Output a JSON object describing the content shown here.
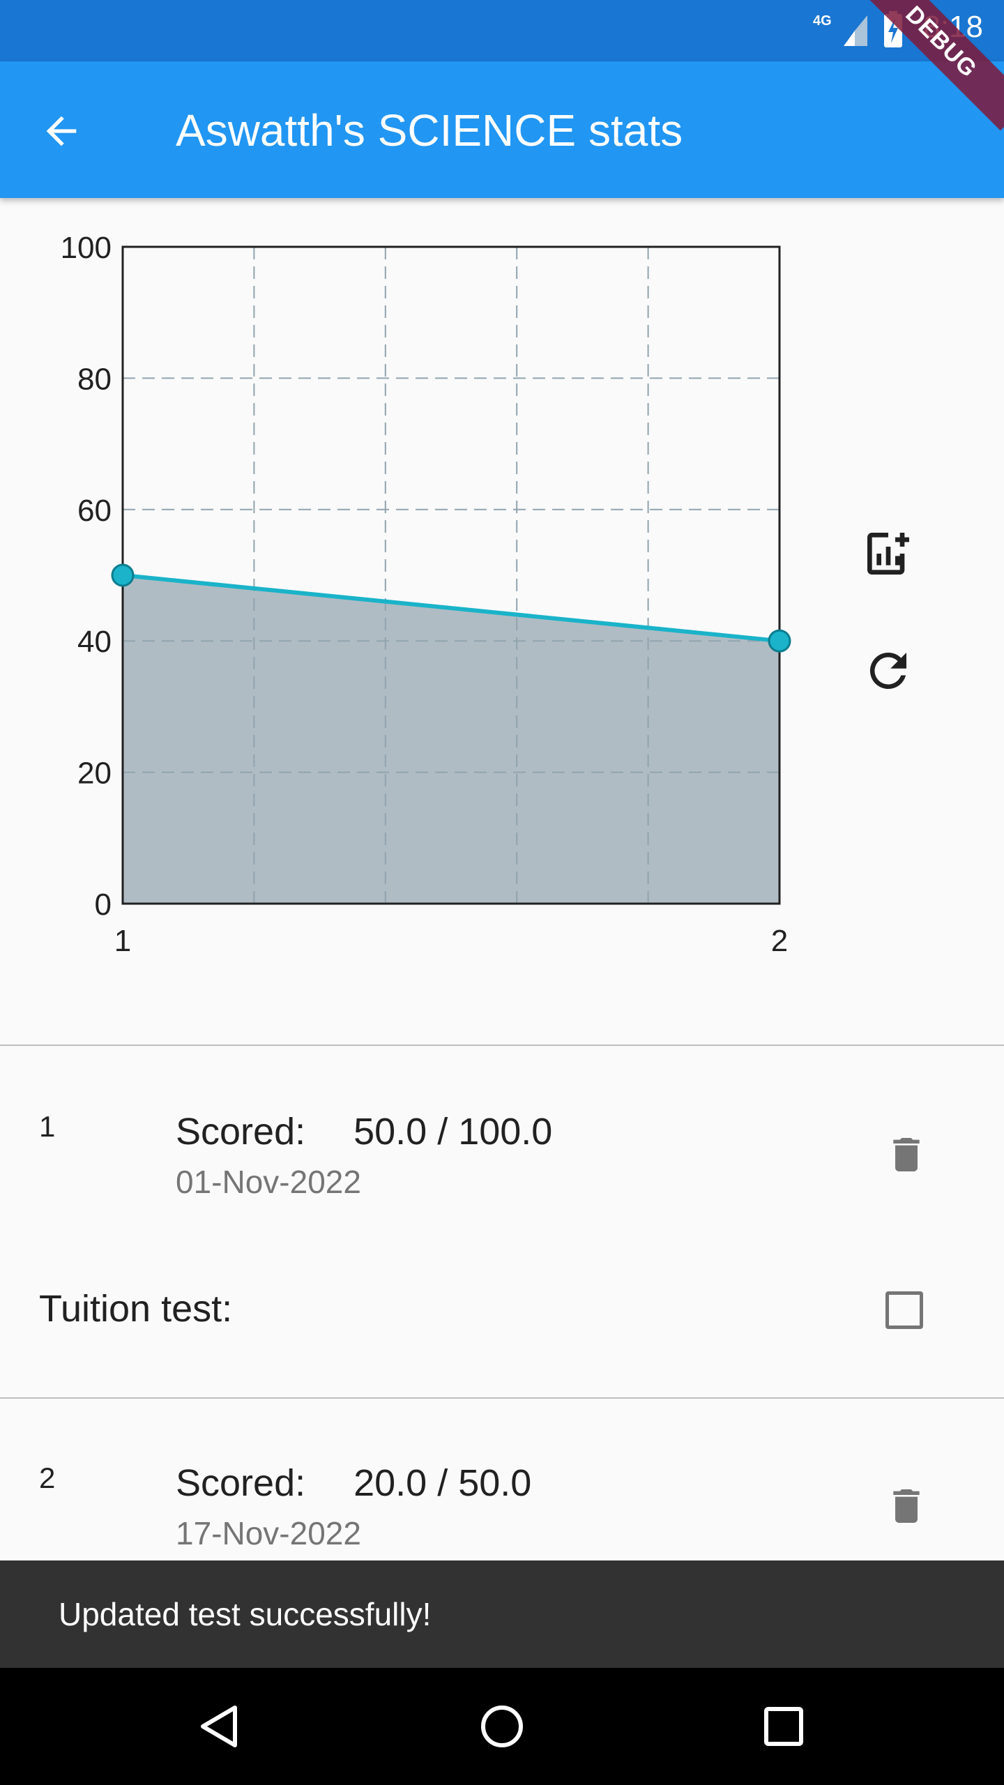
{
  "status_bar": {
    "time": "8:18",
    "network": "4G",
    "debug_banner": "DEBUG",
    "color": "#1976d2"
  },
  "app_bar": {
    "title": "Aswatth's SCIENCE stats",
    "back_icon": "arrow-back-icon",
    "color": "#2196f3"
  },
  "chart_data": {
    "type": "line",
    "x": [
      1,
      2
    ],
    "series": [
      {
        "values": [
          50,
          40
        ]
      }
    ],
    "xlim": [
      1,
      2
    ],
    "ylim": [
      0,
      100
    ],
    "x_ticks": [
      "1",
      "2"
    ],
    "y_ticks": [
      "0",
      "20",
      "40",
      "60",
      "80",
      "100"
    ],
    "grid": true,
    "area_fill": true,
    "line_color": "#1ab3c9",
    "fill_color": "#b0bcc4"
  },
  "chart_actions": {
    "add_icon": "add-chart-icon",
    "refresh_icon": "refresh-icon"
  },
  "tests": [
    {
      "index": "1",
      "score": "Scored:  50.0 / 100.0",
      "date": "01-Nov-2022",
      "delete_icon": "trash-icon"
    },
    {
      "index": "2",
      "score": "Scored:  20.0 / 50.0",
      "date": "17-Nov-2022",
      "delete_icon": "trash-icon"
    }
  ],
  "tuition": {
    "label": "Tuition test:",
    "checked": false
  },
  "snackbar": {
    "message": "Updated test successfully!"
  },
  "nav_bar": {
    "back_icon": "nav-back-icon",
    "home_icon": "nav-home-icon",
    "recents_icon": "nav-recents-icon"
  }
}
